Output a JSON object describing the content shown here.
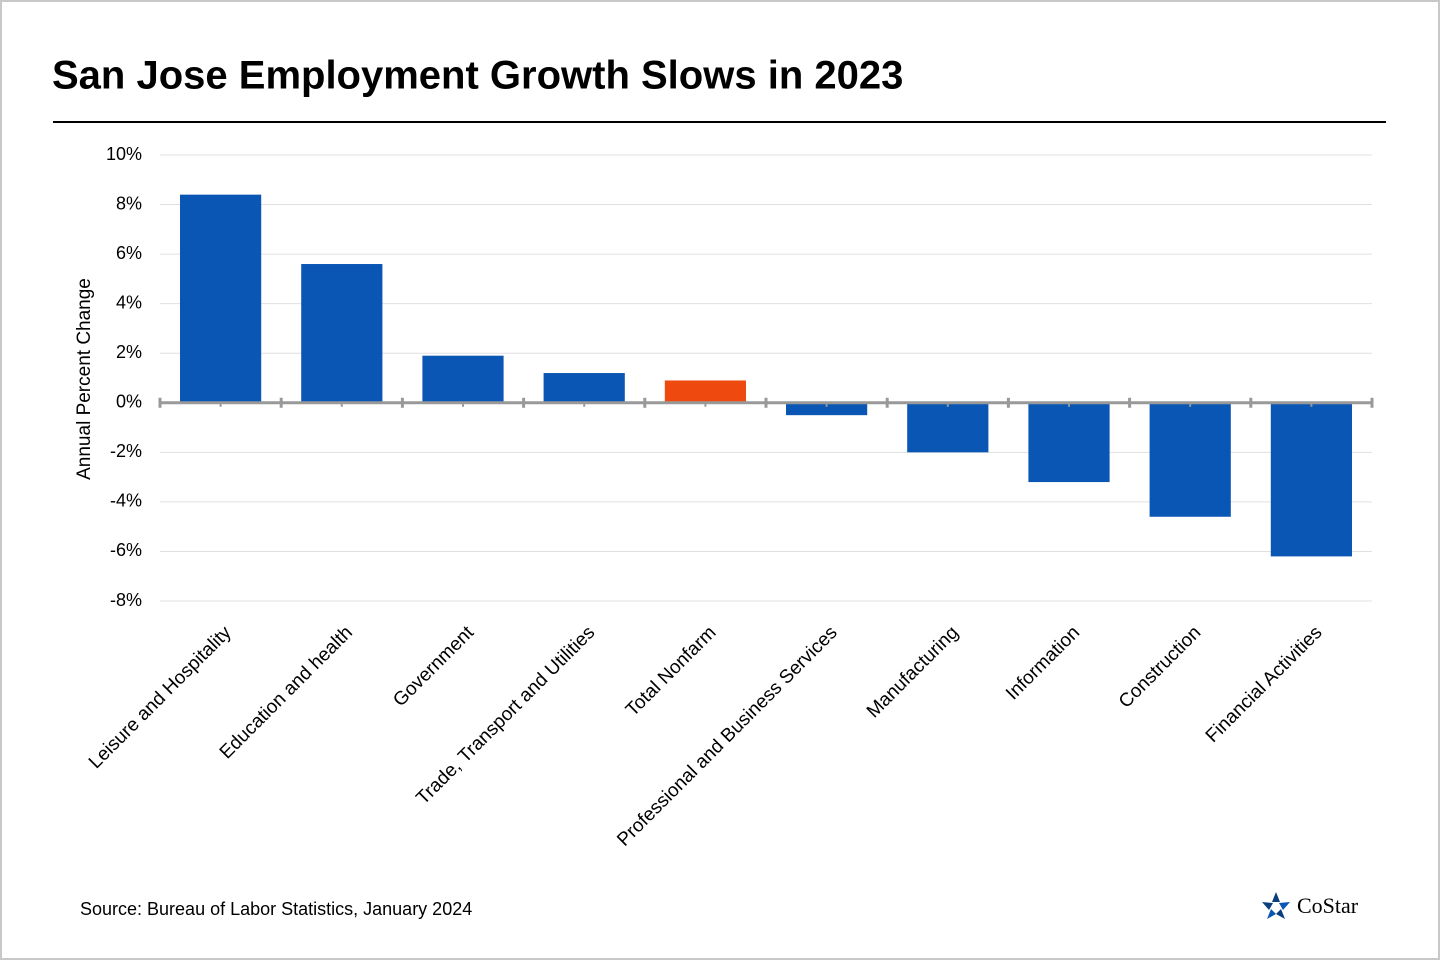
{
  "chart_data": {
    "type": "bar",
    "title": "San Jose Employment Growth Slows in 2023",
    "y_label": "Annual Percent Change",
    "source": "Source: Bureau of Labor Statistics, January 2024",
    "logo": "CoStar",
    "categories": [
      "Leisure and Hospitality",
      "Education and health",
      "Government",
      "Trade, Transport and Utilities",
      "Total Nonfarm",
      "Professional and Business Services",
      "Manufacturing",
      "Information",
      "Construction",
      "Financial Activities"
    ],
    "values": [
      8.4,
      5.6,
      1.9,
      1.2,
      0.9,
      -0.5,
      -2.0,
      -3.2,
      -4.6,
      -6.2
    ],
    "colors": [
      "#0a56b5",
      "#0a56b5",
      "#0a56b5",
      "#0a56b5",
      "#ee4a0f",
      "#0a56b5",
      "#0a56b5",
      "#0a56b5",
      "#0a56b5",
      "#0a56b5"
    ],
    "ylim": [
      -8,
      10
    ],
    "yticks": [
      {
        "value": -8,
        "label": "-8%"
      },
      {
        "value": -6,
        "label": "-6%"
      },
      {
        "value": -4,
        "label": "-4%"
      },
      {
        "value": -2,
        "label": "-2%"
      },
      {
        "value": 0,
        "label": "0%"
      },
      {
        "value": 2,
        "label": "2%"
      },
      {
        "value": 4,
        "label": "4%"
      },
      {
        "value": 6,
        "label": "6%"
      },
      {
        "value": 8,
        "label": "8%"
      },
      {
        "value": 10,
        "label": "10%"
      }
    ],
    "grid": true
  }
}
